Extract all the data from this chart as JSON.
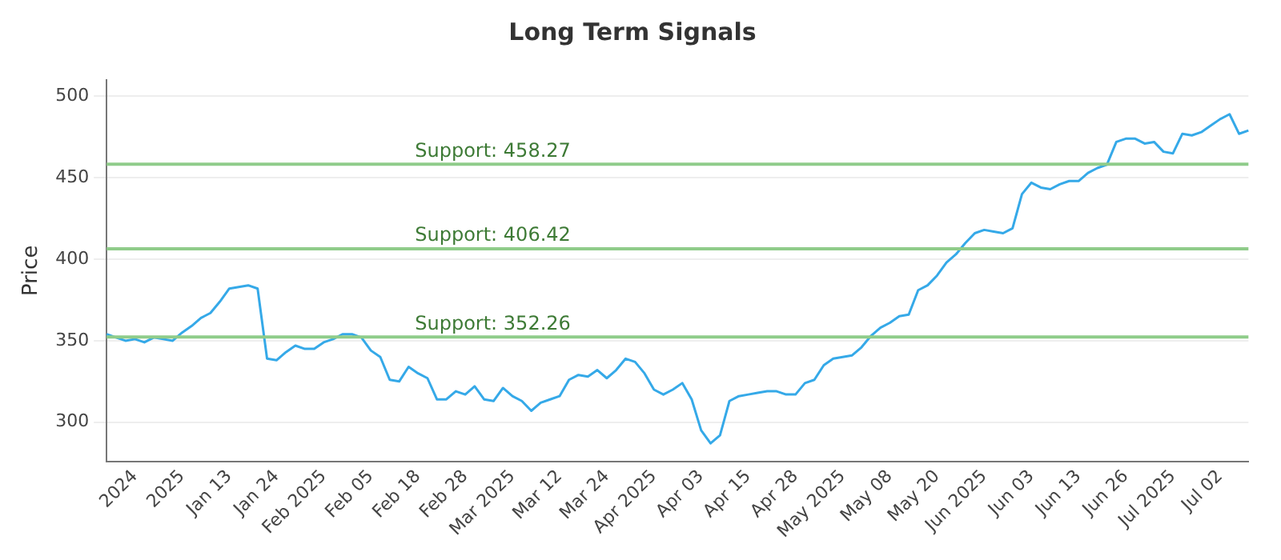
{
  "chart_data": {
    "type": "line",
    "title": "Long Term Signals",
    "ylabel": "Price",
    "categories": [
      null,
      null,
      null,
      "2024",
      null,
      null,
      null,
      null,
      "2025",
      null,
      null,
      null,
      null,
      "Jan 13",
      null,
      null,
      null,
      null,
      "Jan 24",
      null,
      null,
      null,
      null,
      "Feb 2025",
      null,
      null,
      null,
      null,
      "Feb 05",
      null,
      null,
      null,
      null,
      "Feb 18",
      null,
      null,
      null,
      null,
      "Feb 28",
      null,
      null,
      null,
      null,
      "Mar 2025",
      null,
      null,
      null,
      null,
      "Mar 12",
      null,
      null,
      null,
      null,
      "Mar 24",
      null,
      null,
      null,
      null,
      "Apr 2025",
      null,
      null,
      null,
      null,
      "Apr 03",
      null,
      null,
      null,
      null,
      "Apr 15",
      null,
      null,
      null,
      null,
      "Apr 28",
      null,
      null,
      null,
      null,
      "May 2025",
      null,
      null,
      null,
      null,
      "May 08",
      null,
      null,
      null,
      null,
      "May 20",
      null,
      null,
      null,
      null,
      "Jun 2025",
      null,
      null,
      null,
      null,
      "Jun 03",
      null,
      null,
      null,
      null,
      "Jun 13",
      null,
      null,
      null,
      null,
      "Jun 26",
      null,
      null,
      null,
      null,
      "Jul 2025",
      null,
      null,
      null,
      null,
      "Jul 02",
      null,
      null,
      null
    ],
    "series": [
      {
        "color": "#35a9e8",
        "values": [
          354,
          352,
          350,
          351,
          349,
          352,
          351,
          350,
          355,
          359,
          364,
          367,
          374,
          382,
          383,
          384,
          382,
          339,
          338,
          343,
          347,
          345,
          345,
          349,
          351,
          354,
          354,
          352,
          344,
          340,
          326,
          325,
          334,
          330,
          327,
          314,
          314,
          319,
          317,
          322,
          314,
          313,
          321,
          316,
          313,
          307,
          312,
          314,
          316,
          326,
          329,
          328,
          332,
          327,
          332,
          339,
          337,
          330,
          320,
          317,
          320,
          324,
          314,
          295,
          287,
          292,
          313,
          316,
          317,
          318,
          319,
          319,
          317,
          317,
          324,
          326,
          335,
          339,
          340,
          341,
          346,
          353,
          358,
          361,
          365,
          366,
          381,
          384,
          390,
          398,
          403,
          410,
          416,
          418,
          417,
          416,
          419,
          440,
          447,
          444,
          443,
          446,
          448,
          448,
          453,
          456,
          458,
          472,
          474,
          474,
          471,
          472,
          466,
          465,
          477,
          476,
          478,
          482,
          486,
          489,
          477,
          479
        ]
      }
    ],
    "ylim": [
      276,
      510
    ],
    "yticks": [
      300,
      350,
      400,
      450,
      500
    ],
    "grid": "y",
    "legend": false,
    "marker": "none",
    "line_style": "solid",
    "ref_lines": [
      {
        "axis": "y",
        "value": 458.27,
        "label": "Support: 458.27",
        "color": "#8fcc8a"
      },
      {
        "axis": "y",
        "value": 406.42,
        "label": "Support: 406.42",
        "color": "#8fcc8a"
      },
      {
        "axis": "y",
        "value": 352.26,
        "label": "Support: 352.26",
        "color": "#8fcc8a"
      }
    ]
  }
}
